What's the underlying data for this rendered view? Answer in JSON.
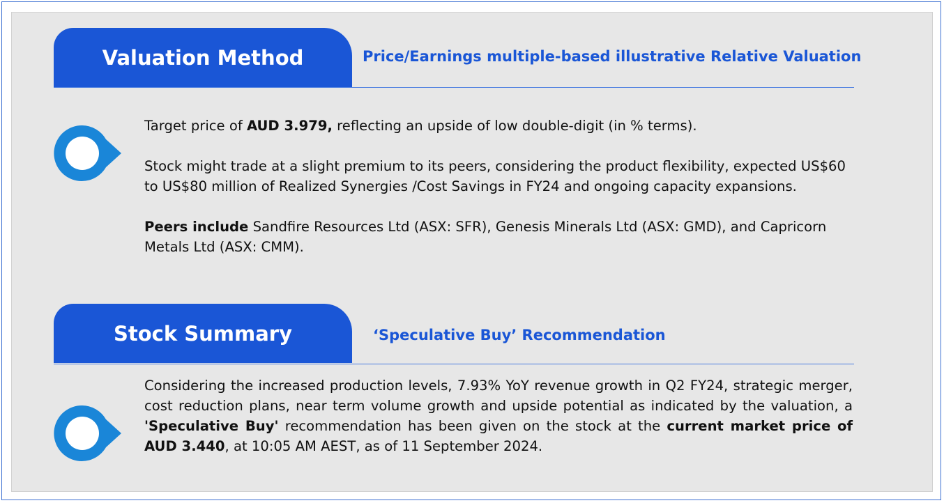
{
  "sections": [
    {
      "title": "Valuation Method",
      "subtitle": "Price/Earnings multiple-based illustrative Relative Valuation",
      "paragraphs": [
        [
          {
            "text": "Target price of "
          },
          {
            "text": "AUD 3.979,",
            "bold": true
          },
          {
            "text": " reflecting an upside of low double-digit (in % terms)."
          }
        ],
        [
          {
            "text": "Stock might trade at a slight premium to its peers, considering the product flexibility, expected US$60 to US$80 million of Realized Synergies /Cost Savings in FY24 and ongoing capacity expansions."
          }
        ],
        [
          {
            "text": "Peers include",
            "bold": true
          },
          {
            "text": " Sandfire Resources Ltd (ASX: SFR), Genesis Minerals Ltd (ASX: GMD), and Capricorn Metals Ltd (ASX: CMM)."
          }
        ]
      ]
    },
    {
      "title": "Stock Summary",
      "subtitle": "‘Speculative Buy’ Recommendation",
      "paragraphs": [
        [
          {
            "text": "Considering the increased production levels, 7.93% YoY revenue growth in Q2 FY24, strategic merger, cost reduction plans, near term volume growth and upside potential as indicated by the valuation, a "
          },
          {
            "text": "'Speculative Buy'",
            "bold": true
          },
          {
            "text": " recommendation has been given on the stock at the "
          },
          {
            "text": "current market price of AUD 3.440",
            "bold": true
          },
          {
            "text": ", at 10:05 AM AEST, as of 11 September 2024."
          }
        ]
      ]
    }
  ]
}
